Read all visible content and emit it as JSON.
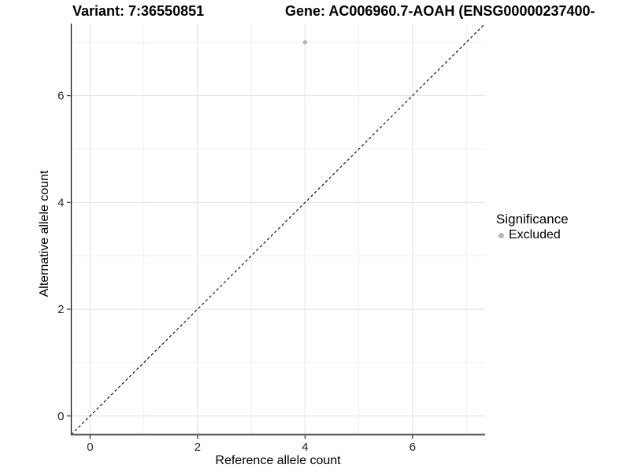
{
  "chart_data": {
    "type": "scatter",
    "title_variant": "Variant: 7:36550851",
    "title_gene": "Gene: AC006960.7-AOAH (ENSG00000237400-",
    "xlabel": "Reference allele count",
    "ylabel": "Alternative allele count",
    "xlim": [
      -0.35,
      7.35
    ],
    "ylim": [
      -0.35,
      7.35
    ],
    "x_ticks": [
      0,
      2,
      4,
      6
    ],
    "y_ticks": [
      0,
      2,
      4,
      6
    ],
    "x_tick_labels": [
      "0",
      "2",
      "4",
      "6"
    ],
    "y_tick_labels": [
      "0",
      "2",
      "4",
      "6"
    ],
    "x_minor_ticks": [
      1,
      3,
      5,
      7
    ],
    "y_minor_ticks": [
      1,
      3,
      5,
      7
    ],
    "grid": true,
    "identity_line": {
      "style": "dashed",
      "x1": -0.35,
      "y1": -0.35,
      "x2": 7.35,
      "y2": 7.35,
      "color": "#000000"
    },
    "series": [
      {
        "name": "Excluded",
        "color": "#b4b4b4",
        "points": [
          [
            4,
            7
          ]
        ]
      }
    ],
    "legend": {
      "title": "Significance",
      "position": "right",
      "entries": [
        {
          "label": "Excluded",
          "color": "#b4b4b4"
        }
      ]
    },
    "colors": {
      "background": "#ffffff",
      "grid_major": "#e4e4e4",
      "grid_minor": "#efefef",
      "axis_line_left": "#1c1c1c",
      "axis_line_bottom": "#555555",
      "tick_mark": "#333333",
      "tick_label": "#262626"
    }
  }
}
